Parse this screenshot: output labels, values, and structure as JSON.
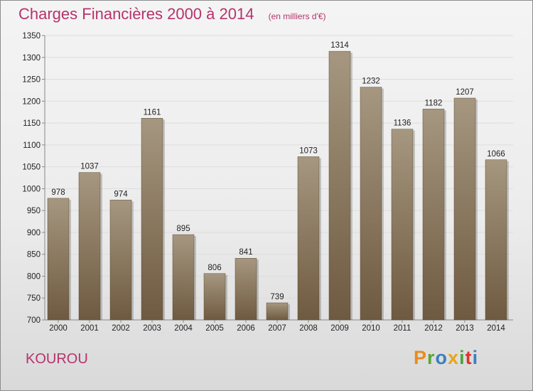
{
  "header": {
    "title": "Charges Financières 2000 à 2014",
    "unit": "(en milliers d'€)"
  },
  "footer": {
    "town": "KOUROU",
    "logo_letters": [
      "P",
      "r",
      "o",
      "x",
      "i",
      "t",
      "i"
    ],
    "logo_colors": [
      "#e88c1d",
      "#5aa632",
      "#3a7fc1",
      "#e6a51a",
      "#4aa53b",
      "#d8372d",
      "#3a7fc1"
    ]
  },
  "colors": {
    "title": "#b5336b",
    "bar_light": "#a69780",
    "bar_dark": "#6e5a40",
    "axis": "#888888",
    "grid": "#dddddd"
  },
  "chart_data": {
    "type": "bar",
    "title": "Charges Financières 2000 à 2014",
    "unit": "(en milliers d'€)",
    "categories": [
      "2000",
      "2001",
      "2002",
      "2003",
      "2004",
      "2005",
      "2006",
      "2007",
      "2008",
      "2009",
      "2010",
      "2011",
      "2012",
      "2013",
      "2014"
    ],
    "values": [
      978,
      1037,
      974,
      1161,
      895,
      806,
      841,
      739,
      1073,
      1314,
      1232,
      1136,
      1182,
      1207,
      1066
    ],
    "ylim": [
      700,
      1350
    ],
    "yticks": [
      700,
      750,
      800,
      850,
      900,
      950,
      1000,
      1050,
      1100,
      1150,
      1200,
      1250,
      1300,
      1350
    ],
    "grid": true,
    "legend": "none"
  }
}
